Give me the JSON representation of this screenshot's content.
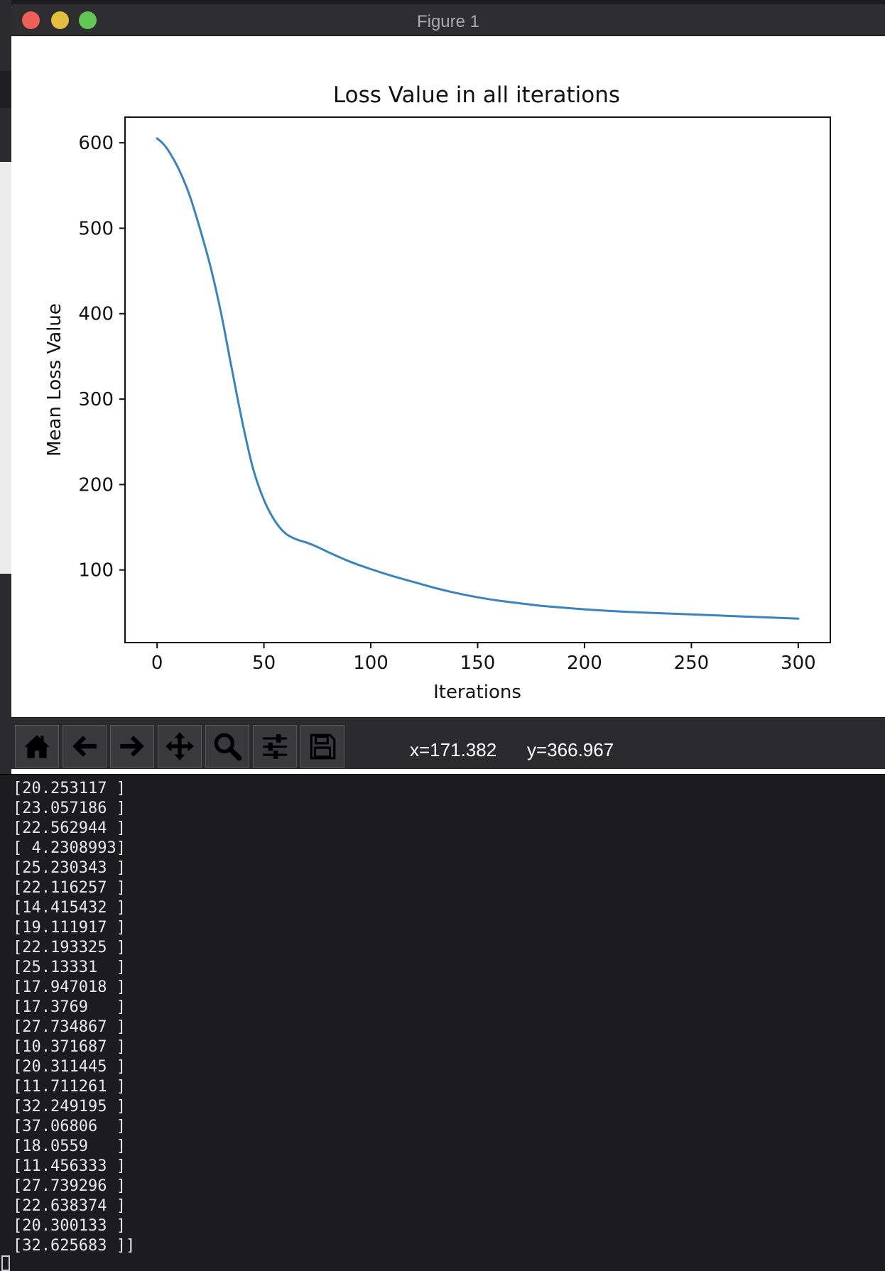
{
  "window": {
    "title": "Figure 1"
  },
  "chart_data": {
    "type": "line",
    "title": "Loss Value in all iterations",
    "xlabel": "Iterations",
    "ylabel": "Mean Loss Value",
    "xlim": [
      -15,
      315
    ],
    "ylim": [
      15,
      630
    ],
    "xticks": [
      0,
      50,
      100,
      150,
      200,
      250,
      300
    ],
    "yticks": [
      100,
      200,
      300,
      400,
      500,
      600
    ],
    "grid": false,
    "color": "#3b83bd",
    "series": [
      {
        "x": [
          0,
          2,
          5,
          10,
          15,
          20,
          25,
          30,
          35,
          40,
          45,
          50,
          55,
          60,
          65,
          70,
          75,
          80,
          90,
          100,
          110,
          120,
          130,
          140,
          150,
          160,
          170,
          180,
          190,
          200,
          220,
          240,
          260,
          280,
          300
        ],
        "values": [
          605,
          601,
          592,
          570,
          540,
          500,
          455,
          400,
          335,
          272,
          218,
          182,
          158,
          143,
          136,
          132,
          127,
          121,
          110,
          101,
          93,
          86,
          79,
          73,
          68,
          64,
          61,
          58,
          56,
          54,
          51,
          49,
          47,
          45,
          43
        ]
      }
    ]
  },
  "toolbar": {
    "buttons": [
      "home-icon",
      "back-icon",
      "forward-icon",
      "pan-icon",
      "zoom-icon",
      "configure-subplots-icon",
      "save-icon"
    ],
    "x_readout": "x=171.382",
    "y_readout": "y=366.967"
  },
  "terminal": {
    "lines": [
      "[20.253117 ]",
      "[23.057186 ]",
      "[22.562944 ]",
      "[ 4.2308993]",
      "[25.230343 ]",
      "[22.116257 ]",
      "[14.415432 ]",
      "[19.111917 ]",
      "[22.193325 ]",
      "[25.13331  ]",
      "[17.947018 ]",
      "[17.3769   ]",
      "[27.734867 ]",
      "[10.371687 ]",
      "[20.311445 ]",
      "[11.711261 ]",
      "[32.249195 ]",
      "[37.06806  ]",
      "[18.0559   ]",
      "[11.456333 ]",
      "[27.739296 ]",
      "[22.638374 ]",
      "[20.300133 ]",
      "[32.625683 ]]"
    ]
  }
}
